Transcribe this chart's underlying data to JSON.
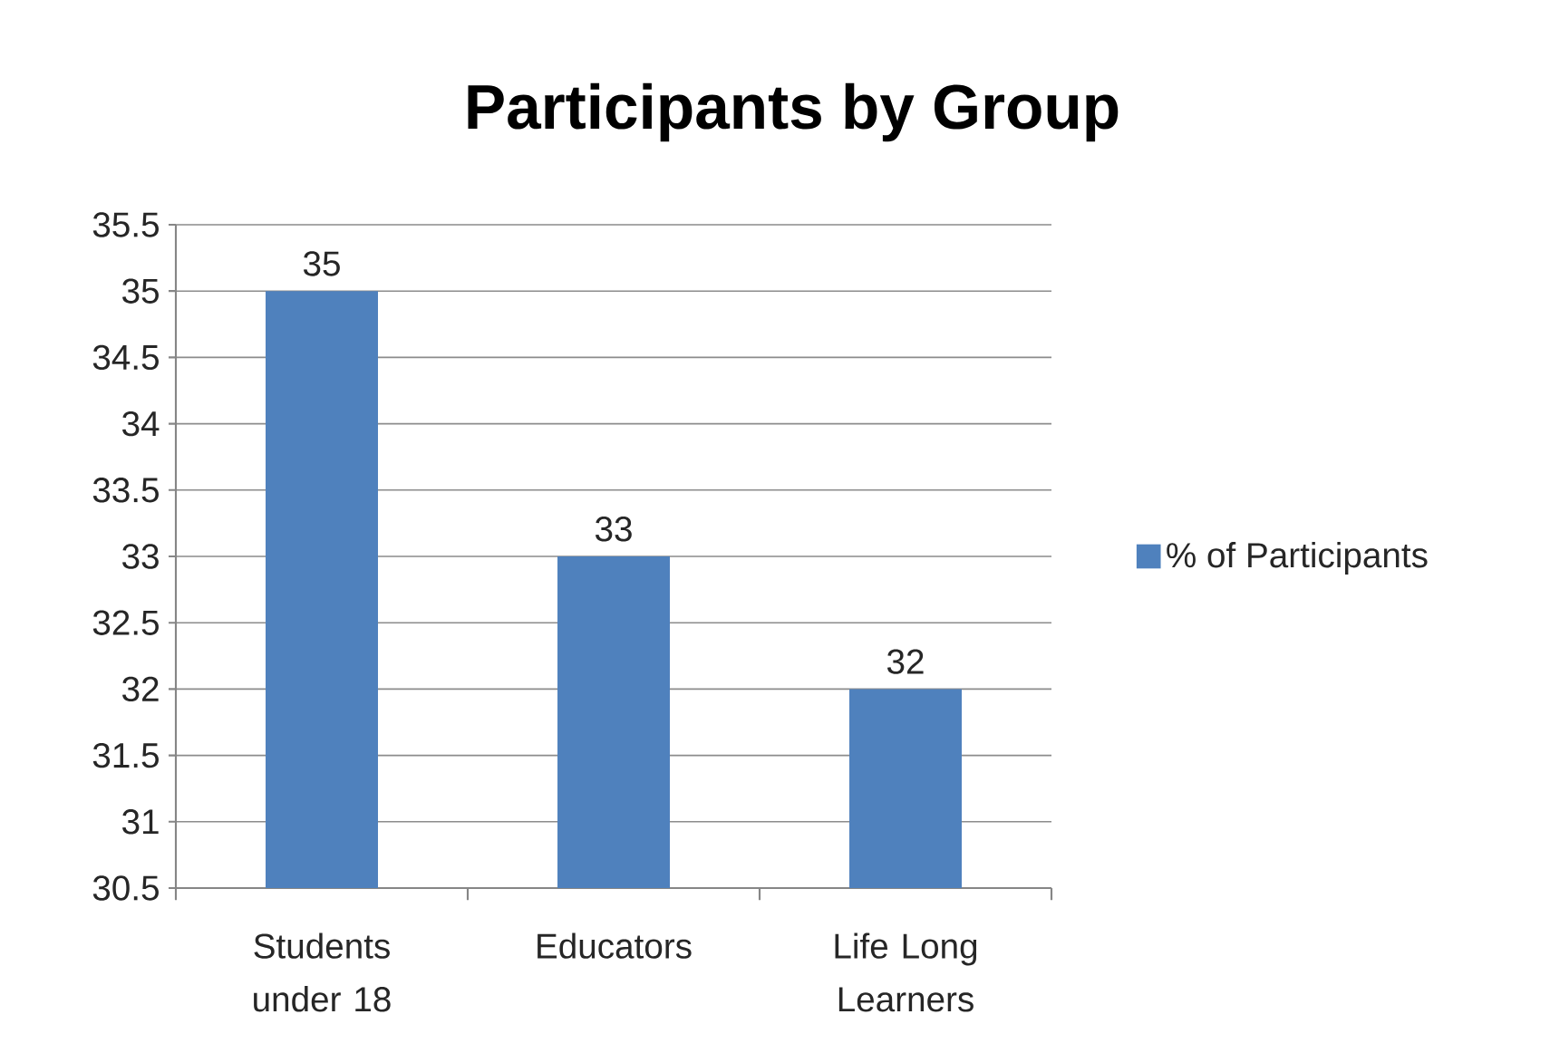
{
  "chart_data": {
    "type": "bar",
    "title": "Participants by Group",
    "categories": [
      "Students under 18",
      "Educators",
      "Life Long Learners"
    ],
    "series": [
      {
        "name": "% of Participants",
        "color": "#4f81bd",
        "values": [
          35,
          33,
          32
        ]
      }
    ],
    "ylim": [
      30.5,
      35.5
    ],
    "yticks": [
      30.5,
      31,
      31.5,
      32,
      32.5,
      33,
      33.5,
      34,
      34.5,
      35,
      35.5
    ],
    "grid": "y",
    "legend": "right",
    "data_labels": true
  }
}
